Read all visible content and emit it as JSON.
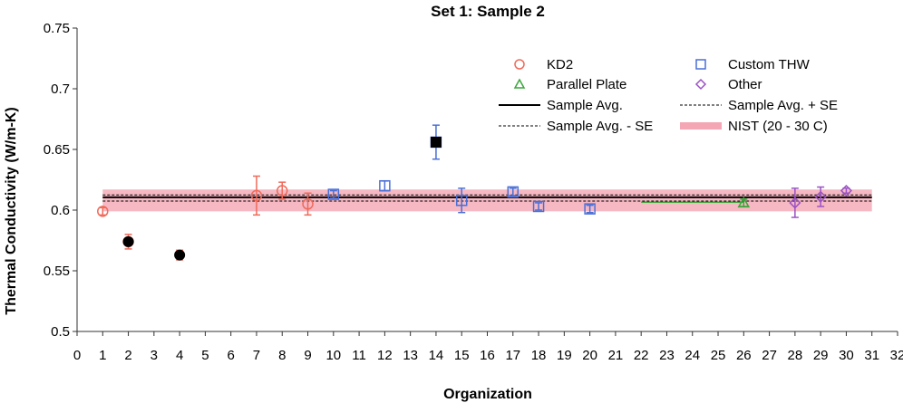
{
  "chart_data": {
    "type": "scatter",
    "title": "Set 1: Sample 2",
    "xlabel": "Organization",
    "ylabel": "Thermal Conductivity (W/m-K)",
    "xlim": [
      0,
      32
    ],
    "ylim": [
      0.5,
      0.75
    ],
    "x_ticks": [
      0,
      1,
      2,
      3,
      4,
      5,
      6,
      7,
      8,
      9,
      10,
      11,
      12,
      13,
      14,
      15,
      16,
      17,
      18,
      19,
      20,
      21,
      22,
      23,
      24,
      25,
      26,
      27,
      28,
      29,
      30,
      31,
      32
    ],
    "y_ticks": [
      "0.5",
      "0.55",
      "0.6",
      "0.65",
      "0.7",
      "0.75"
    ],
    "grid": false,
    "legend_position": "top-right",
    "legend": [
      {
        "label": "KD2",
        "marker": "circle",
        "color": "#f06a5a"
      },
      {
        "label": "Custom THW",
        "marker": "square",
        "color": "#4a6fd6"
      },
      {
        "label": "Parallel Plate",
        "marker": "triangle",
        "color": "#3aa63a"
      },
      {
        "label": "Other",
        "marker": "diamond",
        "color": "#9b52c4"
      },
      {
        "label": "Sample Avg.",
        "marker": "line-solid",
        "color": "#000000"
      },
      {
        "label": "Sample Avg. + SE",
        "marker": "line-dashed",
        "color": "#000000"
      },
      {
        "label": "Sample Avg. - SE",
        "marker": "line-dashed",
        "color": "#000000"
      },
      {
        "label": "NIST (20 - 30 C)",
        "marker": "band",
        "color": "#f4a6b4"
      }
    ],
    "series": [
      {
        "name": "KD2",
        "marker": "circle",
        "color": "#f06a5a",
        "points": [
          {
            "x": 1,
            "y": 0.599,
            "err": 0.003
          },
          {
            "x": 2,
            "y": 0.574,
            "err": 0.006
          },
          {
            "x": 7,
            "y": 0.612,
            "err": 0.016
          },
          {
            "x": 8,
            "y": 0.616,
            "err": 0.007
          },
          {
            "x": 9,
            "y": 0.605,
            "err": 0.009
          }
        ]
      },
      {
        "name": "Custom THW",
        "marker": "square",
        "color": "#4a6fd6",
        "points": [
          {
            "x": 10,
            "y": 0.613,
            "err": 0.003
          },
          {
            "x": 12,
            "y": 0.62,
            "err": 0.004
          },
          {
            "x": 14,
            "y": 0.656,
            "err": 0.014
          },
          {
            "x": 15,
            "y": 0.608,
            "err": 0.01
          },
          {
            "x": 17,
            "y": 0.615,
            "err": 0.003
          },
          {
            "x": 18,
            "y": 0.603,
            "err": 0.003
          },
          {
            "x": 20,
            "y": 0.601,
            "err": 0.003
          }
        ]
      },
      {
        "name": "Parallel Plate",
        "marker": "triangle",
        "color": "#3aa63a",
        "points": [
          {
            "x": 26,
            "y": 0.606,
            "err": 0.003
          }
        ]
      },
      {
        "name": "Other",
        "marker": "diamond",
        "color": "#9b52c4",
        "points": [
          {
            "x": 28,
            "y": 0.606,
            "err": 0.012
          },
          {
            "x": 29,
            "y": 0.611,
            "err": 0.008
          },
          {
            "x": 30,
            "y": 0.616,
            "err": 0.002
          }
        ]
      }
    ],
    "outliers_filled_black": [
      {
        "x": 2,
        "y": 0.574,
        "marker": "circle"
      },
      {
        "x": 4,
        "y": 0.563,
        "marker": "circle",
        "err": 0.004
      },
      {
        "x": 14,
        "y": 0.656,
        "marker": "square"
      }
    ],
    "sample_avg": 0.6105,
    "sample_avg_plus_se": 0.6125,
    "sample_avg_minus_se": 0.6075,
    "sample_line_x": [
      1,
      31
    ],
    "nist_band": [
      0.599,
      0.617
    ],
    "nist_band_x": [
      1,
      31
    ],
    "parallel_plate_line": {
      "x": [
        22,
        26
      ],
      "y": 0.6065
    }
  }
}
